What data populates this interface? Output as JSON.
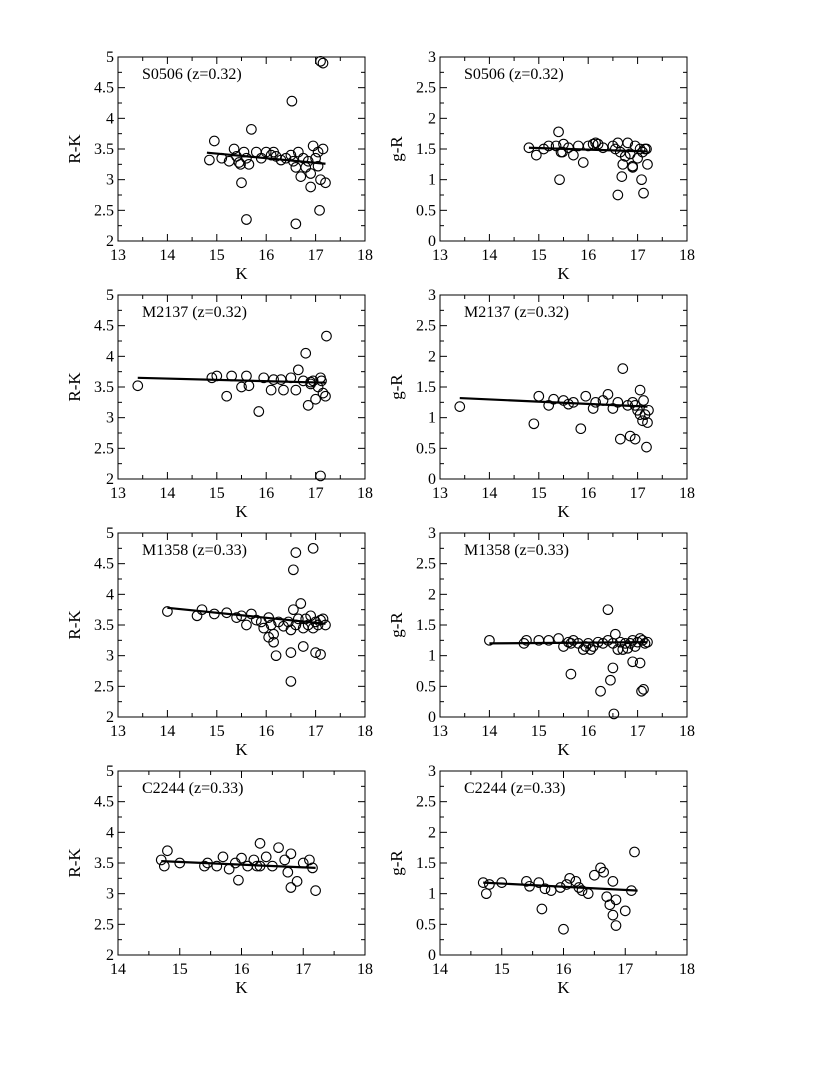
{
  "chart_data": [
    {
      "type": "scatter",
      "title": "S0506 (z=0.32)",
      "xlabel": "K",
      "ylabel": "R-K",
      "xlim": [
        13,
        18
      ],
      "ylim": [
        2,
        5
      ],
      "xticks": [
        13,
        14,
        15,
        16,
        17,
        18
      ],
      "yticks": [
        2,
        2.5,
        3,
        3.5,
        4,
        4.5,
        5
      ],
      "xticklabels": [
        "13",
        "14",
        "15",
        "16",
        "17",
        "18"
      ],
      "yticklabels": [
        "2",
        "2.5",
        "3",
        "3.5",
        "4",
        "4.5",
        "5"
      ],
      "grid": false,
      "fit_line": {
        "x": [
          14.8,
          17.2
        ],
        "y": [
          3.44,
          3.26
        ]
      },
      "points": {
        "x": [
          14.85,
          14.95,
          15.1,
          15.25,
          15.35,
          15.4,
          15.45,
          15.5,
          15.55,
          15.6,
          15.65,
          15.7,
          15.8,
          15.9,
          16.0,
          16.1,
          16.15,
          16.2,
          16.3,
          16.4,
          16.5,
          16.55,
          16.6,
          16.65,
          16.7,
          16.75,
          16.8,
          16.85,
          16.9,
          16.95,
          17.0,
          17.05,
          17.1,
          17.15,
          17.2,
          15.48,
          15.6,
          16.52,
          16.6,
          17.1,
          17.15,
          17.08,
          16.9,
          17.05
        ],
        "y": [
          3.32,
          3.63,
          3.35,
          3.3,
          3.5,
          3.38,
          3.28,
          2.95,
          3.45,
          3.35,
          3.25,
          3.82,
          3.45,
          3.35,
          3.45,
          3.4,
          3.45,
          3.38,
          3.32,
          3.35,
          3.4,
          3.3,
          3.2,
          3.45,
          3.05,
          3.35,
          3.2,
          3.3,
          3.1,
          3.55,
          3.35,
          3.45,
          3.0,
          3.5,
          2.95,
          3.25,
          2.35,
          4.28,
          2.28,
          4.93,
          4.9,
          2.5,
          2.88,
          3.22
        ]
      }
    },
    {
      "type": "scatter",
      "title": "S0506 (z=0.32)",
      "xlabel": "K",
      "ylabel": "g-R",
      "xlim": [
        13,
        18
      ],
      "ylim": [
        0,
        3
      ],
      "xticks": [
        13,
        14,
        15,
        16,
        17,
        18
      ],
      "yticks": [
        0,
        0.5,
        1,
        1.5,
        2,
        2.5,
        3
      ],
      "xticklabels": [
        "13",
        "14",
        "15",
        "16",
        "17",
        "18"
      ],
      "yticklabels": [
        "0",
        "0.5",
        "1",
        "1.5",
        "2",
        "2.5",
        "3"
      ],
      "grid": false,
      "fit_line": {
        "x": [
          14.8,
          17.2
        ],
        "y": [
          1.52,
          1.46
        ]
      },
      "points": {
        "x": [
          14.8,
          14.95,
          15.1,
          15.2,
          15.35,
          15.4,
          15.45,
          15.5,
          15.6,
          15.7,
          15.8,
          15.9,
          16.0,
          16.1,
          16.15,
          16.2,
          16.3,
          16.5,
          16.55,
          16.6,
          16.65,
          16.7,
          16.75,
          16.8,
          16.85,
          16.9,
          16.95,
          17.0,
          17.05,
          17.1,
          17.15,
          17.2,
          15.42,
          15.48,
          16.6,
          16.68,
          17.08,
          17.12,
          16.9,
          17.18
        ],
        "y": [
          1.52,
          1.4,
          1.5,
          1.55,
          1.55,
          1.78,
          1.45,
          1.58,
          1.52,
          1.4,
          1.55,
          1.28,
          1.55,
          1.58,
          1.6,
          1.58,
          1.52,
          1.55,
          1.5,
          1.6,
          1.45,
          1.25,
          1.38,
          1.6,
          1.42,
          1.2,
          1.55,
          1.35,
          1.5,
          1.45,
          1.5,
          1.25,
          1.0,
          1.45,
          0.75,
          1.05,
          1.0,
          0.78,
          1.22,
          1.5
        ]
      }
    },
    {
      "type": "scatter",
      "title": "M2137 (z=0.32)",
      "xlabel": "K",
      "ylabel": "R-K",
      "xlim": [
        13,
        18
      ],
      "ylim": [
        2,
        5
      ],
      "xticks": [
        13,
        14,
        15,
        16,
        17,
        18
      ],
      "yticks": [
        2,
        2.5,
        3,
        3.5,
        4,
        4.5,
        5
      ],
      "xticklabels": [
        "13",
        "14",
        "15",
        "16",
        "17",
        "18"
      ],
      "yticklabels": [
        "2",
        "2.5",
        "3",
        "3.5",
        "4",
        "4.5",
        "5"
      ],
      "grid": false,
      "fit_line": {
        "x": [
          13.4,
          17.2
        ],
        "y": [
          3.65,
          3.57
        ]
      },
      "points": {
        "x": [
          13.4,
          14.9,
          15.0,
          15.2,
          15.3,
          15.5,
          15.6,
          15.65,
          15.85,
          15.95,
          16.1,
          16.15,
          16.3,
          16.35,
          16.5,
          16.6,
          16.65,
          16.75,
          16.8,
          16.85,
          16.9,
          16.95,
          17.0,
          17.05,
          17.1,
          17.12,
          17.15,
          17.2,
          17.22,
          16.9,
          17.1
        ],
        "y": [
          3.52,
          3.65,
          3.68,
          3.35,
          3.68,
          3.5,
          3.68,
          3.52,
          3.1,
          3.65,
          3.45,
          3.62,
          3.62,
          3.45,
          3.65,
          3.45,
          3.78,
          3.6,
          4.05,
          3.2,
          3.55,
          3.6,
          3.3,
          3.5,
          3.65,
          3.6,
          3.4,
          3.35,
          4.33,
          3.58,
          2.05
        ]
      }
    },
    {
      "type": "scatter",
      "title": "M2137 (z=0.32)",
      "xlabel": "K",
      "ylabel": "g-R",
      "xlim": [
        13,
        18
      ],
      "ylim": [
        0,
        3
      ],
      "xticks": [
        13,
        14,
        15,
        16,
        17,
        18
      ],
      "yticks": [
        0,
        0.5,
        1,
        1.5,
        2,
        2.5,
        3
      ],
      "xticklabels": [
        "13",
        "14",
        "15",
        "16",
        "17",
        "18"
      ],
      "yticklabels": [
        "0",
        "0.5",
        "1",
        "1.5",
        "2",
        "2.5",
        "3"
      ],
      "grid": false,
      "fit_line": {
        "x": [
          13.4,
          17.2
        ],
        "y": [
          1.32,
          1.18
        ]
      },
      "points": {
        "x": [
          13.4,
          14.9,
          15.0,
          15.2,
          15.3,
          15.5,
          15.6,
          15.7,
          15.85,
          15.95,
          16.1,
          16.15,
          16.3,
          16.4,
          16.5,
          16.6,
          16.7,
          16.8,
          16.9,
          16.95,
          17.0,
          17.05,
          17.1,
          17.15,
          17.2,
          17.22,
          16.65,
          16.85,
          16.95,
          17.12,
          17.18,
          17.05
        ],
        "y": [
          1.18,
          0.9,
          1.35,
          1.2,
          1.3,
          1.28,
          1.22,
          1.25,
          0.82,
          1.35,
          1.15,
          1.25,
          1.28,
          1.38,
          1.15,
          1.25,
          1.8,
          1.2,
          1.25,
          1.2,
          1.12,
          1.05,
          0.95,
          1.05,
          0.92,
          1.12,
          0.65,
          0.7,
          0.65,
          1.28,
          0.52,
          1.45
        ]
      }
    },
    {
      "type": "scatter",
      "title": "M1358 (z=0.33)",
      "xlabel": "K",
      "ylabel": "R-K",
      "xlim": [
        13,
        18
      ],
      "ylim": [
        2,
        5
      ],
      "xticks": [
        13,
        14,
        15,
        16,
        17,
        18
      ],
      "yticks": [
        2,
        2.5,
        3,
        3.5,
        4,
        4.5,
        5
      ],
      "xticklabels": [
        "13",
        "14",
        "15",
        "16",
        "17",
        "18"
      ],
      "yticklabels": [
        "2",
        "2.5",
        "3",
        "3.5",
        "4",
        "4.5",
        "5"
      ],
      "grid": false,
      "fit_line": {
        "x": [
          14.0,
          17.2
        ],
        "y": [
          3.78,
          3.52
        ]
      },
      "points": {
        "x": [
          14.0,
          14.6,
          14.7,
          14.95,
          15.2,
          15.4,
          15.5,
          15.6,
          15.7,
          15.8,
          15.9,
          15.95,
          16.05,
          16.1,
          16.15,
          16.25,
          16.35,
          16.45,
          16.5,
          16.55,
          16.6,
          16.65,
          16.7,
          16.75,
          16.8,
          16.85,
          16.9,
          16.95,
          17.0,
          17.05,
          17.1,
          17.15,
          17.2,
          16.05,
          16.15,
          16.2,
          16.5,
          16.5,
          16.55,
          16.6,
          16.75,
          16.95,
          17.0,
          17.1
        ],
        "y": [
          3.72,
          3.65,
          3.75,
          3.68,
          3.7,
          3.62,
          3.65,
          3.5,
          3.68,
          3.58,
          3.55,
          3.45,
          3.62,
          3.5,
          3.35,
          3.55,
          3.48,
          3.55,
          3.42,
          3.75,
          3.5,
          3.6,
          3.85,
          3.45,
          3.6,
          3.5,
          3.65,
          3.45,
          3.55,
          3.5,
          3.58,
          3.6,
          3.5,
          3.3,
          3.22,
          3.0,
          3.05,
          2.58,
          4.4,
          4.68,
          3.15,
          4.75,
          3.05,
          3.02
        ]
      }
    },
    {
      "type": "scatter",
      "title": "M1358 (z=0.33)",
      "xlabel": "K",
      "ylabel": "g-R",
      "xlim": [
        13,
        18
      ],
      "ylim": [
        0,
        3
      ],
      "xticks": [
        13,
        14,
        15,
        16,
        17,
        18
      ],
      "yticks": [
        0,
        0.5,
        1,
        1.5,
        2,
        2.5,
        3
      ],
      "xticklabels": [
        "13",
        "14",
        "15",
        "16",
        "17",
        "18"
      ],
      "yticklabels": [
        "0",
        "0.5",
        "1",
        "1.5",
        "2",
        "2.5",
        "3"
      ],
      "grid": false,
      "fit_line": {
        "x": [
          14.0,
          17.2
        ],
        "y": [
          1.2,
          1.22
        ]
      },
      "points": {
        "x": [
          14.0,
          14.7,
          14.75,
          15.0,
          15.2,
          15.4,
          15.5,
          15.6,
          15.65,
          15.7,
          15.8,
          15.9,
          15.95,
          16.0,
          16.05,
          16.1,
          16.2,
          16.3,
          16.4,
          16.5,
          16.55,
          16.6,
          16.65,
          16.7,
          16.75,
          16.8,
          16.85,
          16.9,
          16.95,
          17.0,
          17.05,
          17.1,
          17.15,
          17.2,
          15.65,
          16.25,
          16.4,
          16.45,
          16.5,
          16.52,
          16.9,
          17.05,
          17.12,
          17.08
        ],
        "y": [
          1.25,
          1.2,
          1.25,
          1.25,
          1.25,
          1.28,
          1.15,
          1.22,
          1.2,
          1.25,
          1.2,
          1.1,
          1.15,
          1.2,
          1.1,
          1.15,
          1.22,
          1.2,
          1.25,
          1.2,
          1.35,
          1.1,
          1.22,
          1.1,
          1.2,
          1.12,
          1.2,
          1.25,
          1.15,
          1.22,
          1.28,
          1.25,
          1.2,
          1.22,
          0.7,
          0.42,
          1.75,
          0.6,
          0.8,
          0.05,
          0.9,
          0.88,
          0.45,
          0.42
        ]
      }
    },
    {
      "type": "scatter",
      "title": "C2244 (z=0.33)",
      "xlabel": "K",
      "ylabel": "R-K",
      "xlim": [
        14,
        18
      ],
      "ylim": [
        2,
        5
      ],
      "xticks": [
        14,
        15,
        16,
        17,
        18
      ],
      "yticks": [
        2,
        2.5,
        3,
        3.5,
        4,
        4.5,
        5
      ],
      "xticklabels": [
        "14",
        "15",
        "16",
        "17",
        "18"
      ],
      "yticklabels": [
        "2",
        "2.5",
        "3",
        "3.5",
        "4",
        "4.5",
        "5"
      ],
      "grid": false,
      "fit_line": {
        "x": [
          14.7,
          17.2
        ],
        "y": [
          3.53,
          3.42
        ]
      },
      "points": {
        "x": [
          14.7,
          14.75,
          14.8,
          15.0,
          15.4,
          15.45,
          15.6,
          15.7,
          15.8,
          15.9,
          16.0,
          16.1,
          16.2,
          16.25,
          16.3,
          16.4,
          16.5,
          16.6,
          16.7,
          16.75,
          16.8,
          16.9,
          17.0,
          17.1,
          17.15,
          17.2,
          15.95,
          16.3,
          16.8
        ],
        "y": [
          3.55,
          3.45,
          3.7,
          3.5,
          3.45,
          3.5,
          3.45,
          3.6,
          3.4,
          3.5,
          3.58,
          3.45,
          3.55,
          3.45,
          3.82,
          3.6,
          3.45,
          3.75,
          3.55,
          3.35,
          3.65,
          3.2,
          3.5,
          3.55,
          3.42,
          3.05,
          3.22,
          3.45,
          3.1
        ]
      }
    },
    {
      "type": "scatter",
      "title": "C2244 (z=0.33)",
      "xlabel": "K",
      "ylabel": "g-R",
      "xlim": [
        14,
        18
      ],
      "ylim": [
        0,
        3
      ],
      "xticks": [
        14,
        15,
        16,
        17,
        18
      ],
      "yticks": [
        0,
        0.5,
        1,
        1.5,
        2,
        2.5,
        3
      ],
      "xticklabels": [
        "14",
        "15",
        "16",
        "17",
        "18"
      ],
      "yticklabels": [
        "0",
        "0.5",
        "1",
        "1.5",
        "2",
        "2.5",
        "3"
      ],
      "grid": false,
      "fit_line": {
        "x": [
          14.7,
          17.2
        ],
        "y": [
          1.18,
          1.05
        ]
      },
      "points": {
        "x": [
          14.7,
          14.75,
          14.8,
          15.0,
          15.4,
          15.45,
          15.6,
          15.7,
          15.8,
          15.95,
          16.05,
          16.1,
          16.2,
          16.25,
          16.3,
          16.4,
          16.5,
          16.6,
          16.65,
          16.7,
          16.75,
          16.8,
          16.85,
          17.0,
          17.1,
          17.15,
          15.65,
          16.0,
          16.8,
          16.85
        ],
        "y": [
          1.18,
          1.0,
          1.15,
          1.18,
          1.2,
          1.12,
          1.18,
          1.08,
          1.05,
          1.1,
          1.15,
          1.25,
          1.2,
          1.1,
          1.05,
          1.0,
          1.3,
          1.42,
          1.35,
          0.95,
          0.82,
          1.2,
          0.9,
          0.72,
          1.05,
          1.68,
          0.75,
          0.42,
          0.65,
          0.48
        ]
      }
    }
  ]
}
